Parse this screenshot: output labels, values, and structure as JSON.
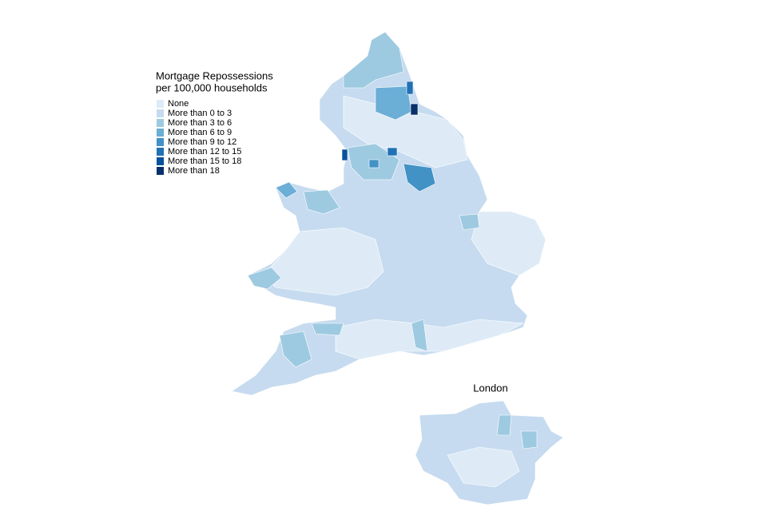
{
  "legend": {
    "title": [
      "Mortgage Repossessions",
      "per 100,000 households"
    ],
    "items": [
      {
        "label": "None",
        "color": "#deebf7"
      },
      {
        "label": "More than 0 to 3",
        "color": "#c6dbef"
      },
      {
        "label": "More than 3 to 6",
        "color": "#9ecae1"
      },
      {
        "label": "More than 6 to 9",
        "color": "#6baed6"
      },
      {
        "label": "More than 9 to 12",
        "color": "#4292c6"
      },
      {
        "label": "More than 12 to 15",
        "color": "#2171b5"
      },
      {
        "label": "More than 15 to 18",
        "color": "#08519c"
      },
      {
        "label": "More than 18",
        "color": "#08306b"
      }
    ]
  },
  "inset": {
    "label": "London"
  }
}
